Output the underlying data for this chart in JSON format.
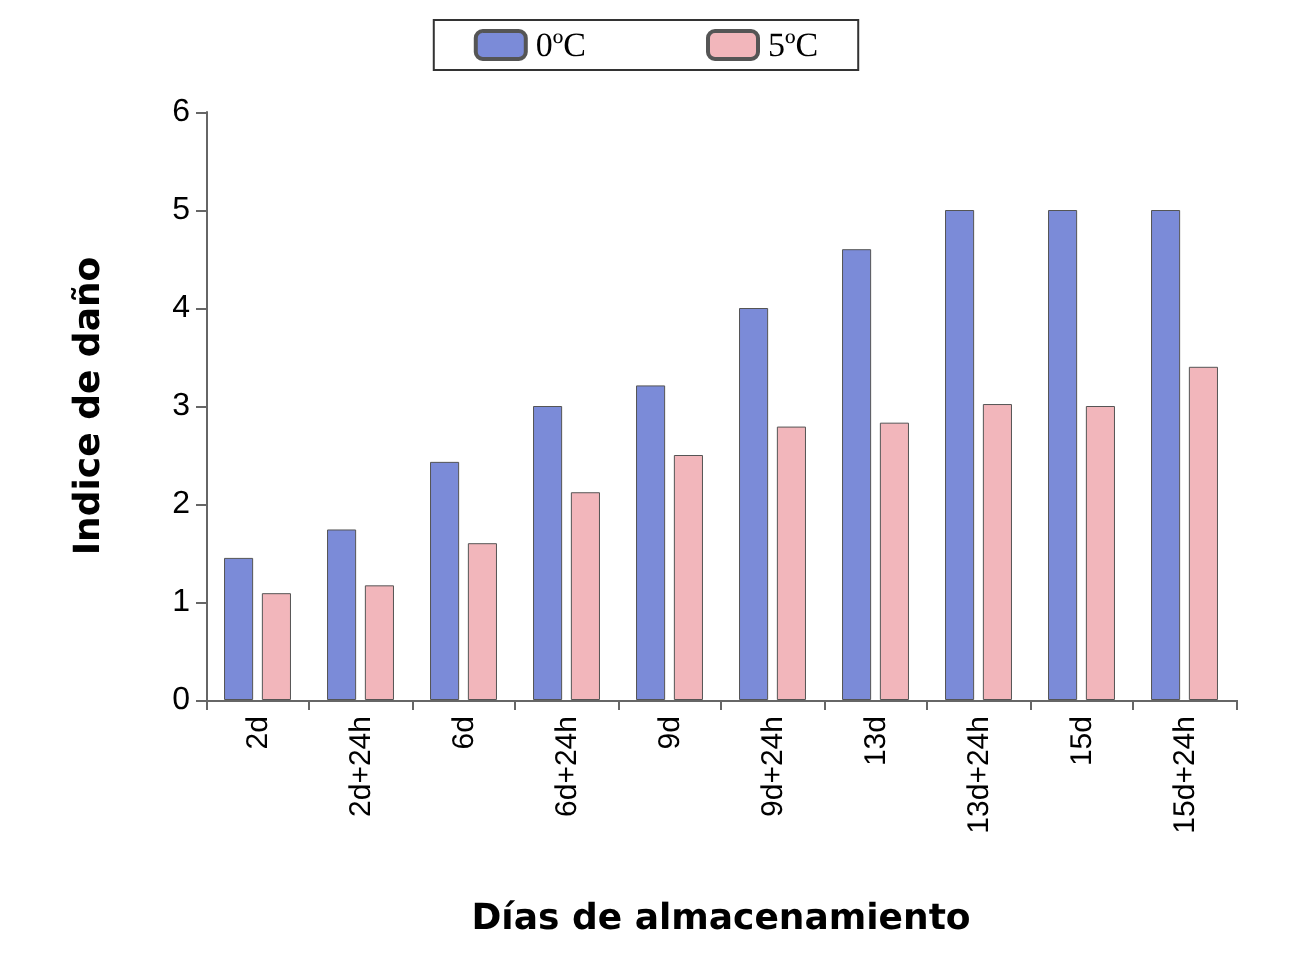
{
  "chart_data": {
    "type": "bar",
    "xlabel": "Días de almacenamiento",
    "ylabel": "Indice de daño",
    "categories": [
      "2d",
      "2d+24h",
      "6d",
      "6d+24h",
      "9d",
      "9d+24h",
      "13d",
      "13d+24h",
      "15d",
      "15d+24h"
    ],
    "series": [
      {
        "name": "0ºC",
        "color": "#7b8bd8",
        "values": [
          1.45,
          1.74,
          2.43,
          3.0,
          3.21,
          4.0,
          4.6,
          5.0,
          5.0,
          5.0
        ]
      },
      {
        "name": "5ºC",
        "color": "#f2b6bb",
        "values": [
          1.09,
          1.17,
          1.6,
          2.12,
          2.5,
          2.79,
          2.83,
          3.02,
          3.0,
          3.4
        ]
      }
    ],
    "ylim": [
      0,
      6
    ],
    "yticks": [
      0,
      1,
      2,
      3,
      4,
      5,
      6
    ],
    "grid": false,
    "legend": "top"
  }
}
